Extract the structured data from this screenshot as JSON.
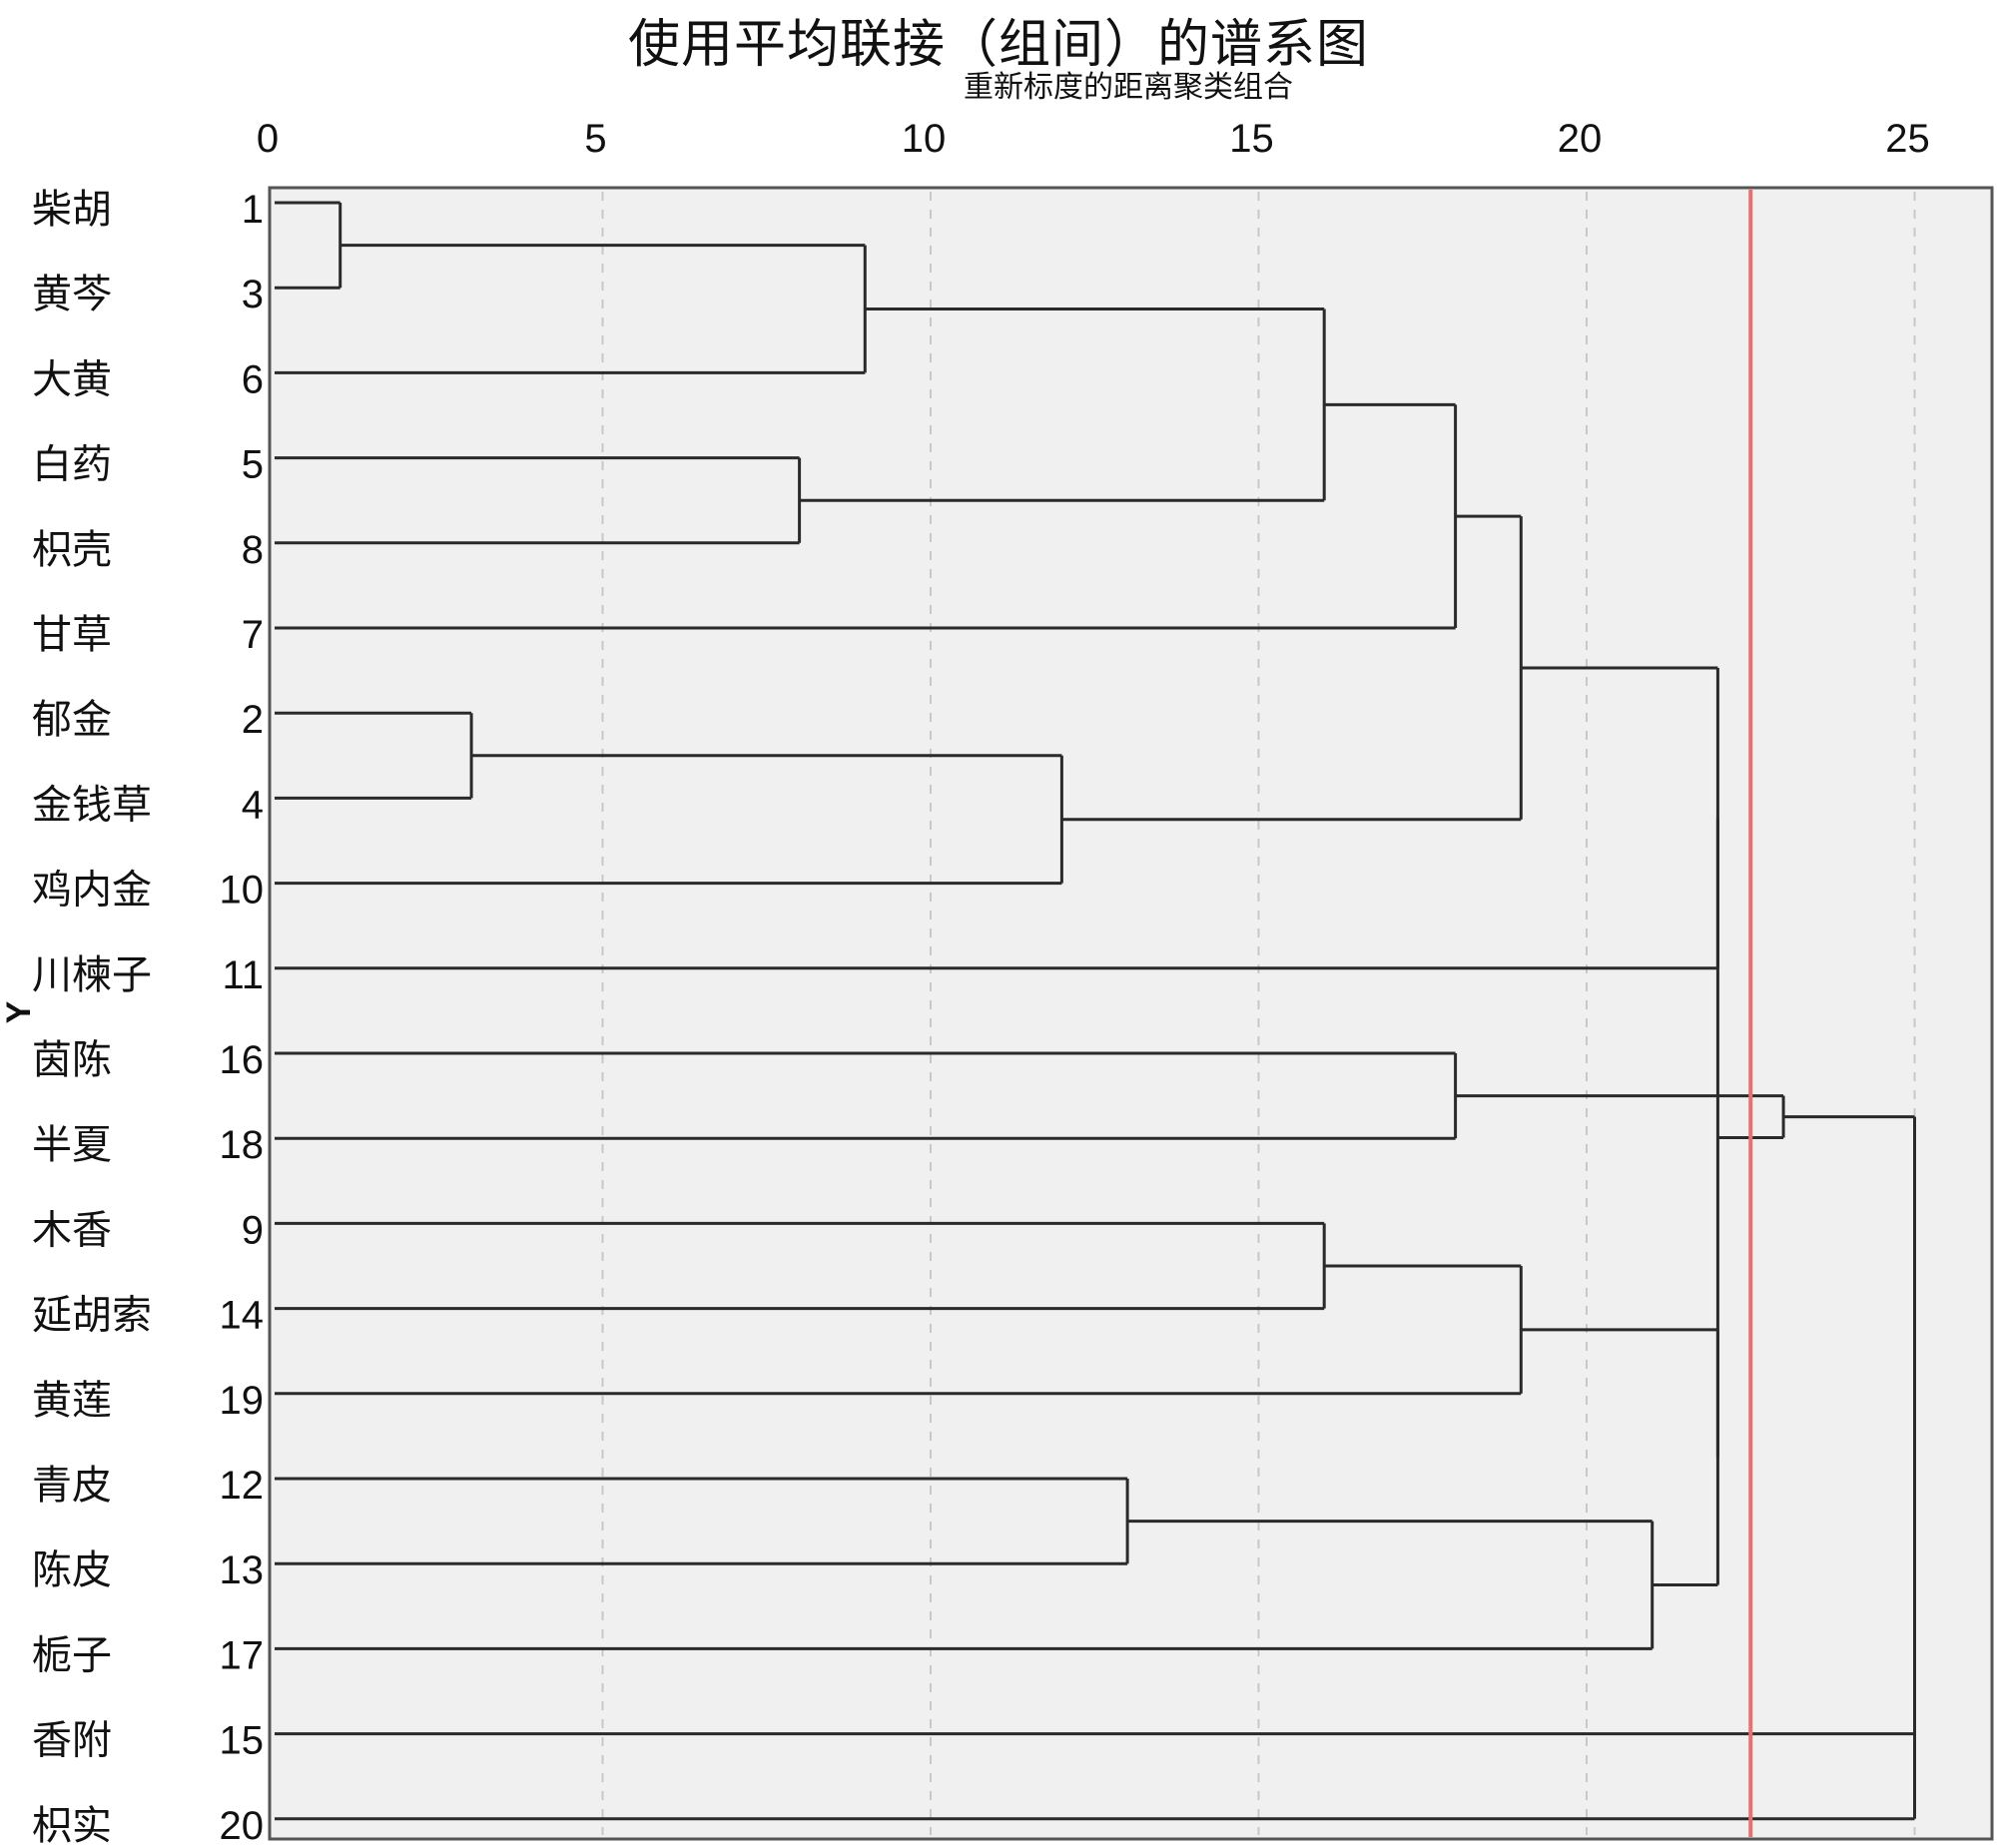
{
  "title": "使用平均联接（组间）的谱系图",
  "subtitle": "重新标度的距离聚类组合",
  "colors": {
    "plot_bg": "#f0f0f0",
    "line": "#2a2a2a",
    "grid": "#c8c8c8",
    "cutoff": "#e87070"
  },
  "chart_data": {
    "type": "dendrogram",
    "title": "使用平均联接（组间）的谱系图",
    "xlabel": "重新标度的距离聚类组合",
    "ylabel": "Y",
    "xlim": [
      0,
      26.3
    ],
    "x_ticks": [
      0,
      5,
      10,
      15,
      20,
      25
    ],
    "grid": "vertical-dashed",
    "cutoff_line": 22.5,
    "leaves": [
      {
        "name": "柴胡",
        "id": "1"
      },
      {
        "name": "黄芩",
        "id": "3"
      },
      {
        "name": "大黄",
        "id": "6"
      },
      {
        "name": "白药",
        "id": "5"
      },
      {
        "name": "枳壳",
        "id": "8"
      },
      {
        "name": "甘草",
        "id": "7"
      },
      {
        "name": "郁金",
        "id": "2"
      },
      {
        "name": "金钱草",
        "id": "4"
      },
      {
        "name": "鸡内金",
        "id": "10"
      },
      {
        "name": "川楝子",
        "id": "11"
      },
      {
        "name": "茵陈",
        "id": "16"
      },
      {
        "name": "半夏",
        "id": "18"
      },
      {
        "name": "木香",
        "id": "9"
      },
      {
        "name": "延胡索",
        "id": "14"
      },
      {
        "name": "黄莲",
        "id": "19"
      },
      {
        "name": "青皮",
        "id": "12"
      },
      {
        "name": "陈皮",
        "id": "13"
      },
      {
        "name": "栀子",
        "id": "17"
      },
      {
        "name": "香附",
        "id": "15"
      },
      {
        "name": "枳实",
        "id": "20"
      }
    ],
    "merges": [
      {
        "id": "A",
        "children": [
          "L0",
          "L1"
        ],
        "distance": 1
      },
      {
        "id": "B",
        "children": [
          "A",
          "L2"
        ],
        "distance": 9
      },
      {
        "id": "C",
        "children": [
          "L3",
          "L4"
        ],
        "distance": 8
      },
      {
        "id": "D",
        "children": [
          "B",
          "C"
        ],
        "distance": 16
      },
      {
        "id": "E",
        "children": [
          "D",
          "L5"
        ],
        "distance": 18
      },
      {
        "id": "F",
        "children": [
          "L6",
          "L7"
        ],
        "distance": 3
      },
      {
        "id": "G",
        "children": [
          "F",
          "L8"
        ],
        "distance": 12
      },
      {
        "id": "H",
        "children": [
          "E",
          "G"
        ],
        "distance": 19
      },
      {
        "id": "I",
        "children": [
          "H",
          "L9"
        ],
        "distance": 22
      },
      {
        "id": "J",
        "children": [
          "L10",
          "L11"
        ],
        "distance": 18
      },
      {
        "id": "K",
        "children": [
          "L12",
          "L13"
        ],
        "distance": 16
      },
      {
        "id": "M",
        "children": [
          "K",
          "L14"
        ],
        "distance": 19
      },
      {
        "id": "N",
        "children": [
          "L15",
          "L16"
        ],
        "distance": 13
      },
      {
        "id": "O",
        "children": [
          "N",
          "L17"
        ],
        "distance": 21
      },
      {
        "id": "P",
        "children": [
          "M",
          "O"
        ],
        "distance": 22
      },
      {
        "id": "Q",
        "children": [
          "I",
          "P"
        ],
        "distance": 22
      },
      {
        "id": "R",
        "children": [
          "Q",
          "J"
        ],
        "distance": 23
      },
      {
        "id": "S",
        "children": [
          "L18",
          "L19"
        ],
        "distance": 25
      },
      {
        "id": "T",
        "children": [
          "R",
          "S"
        ],
        "distance": 25
      }
    ]
  }
}
